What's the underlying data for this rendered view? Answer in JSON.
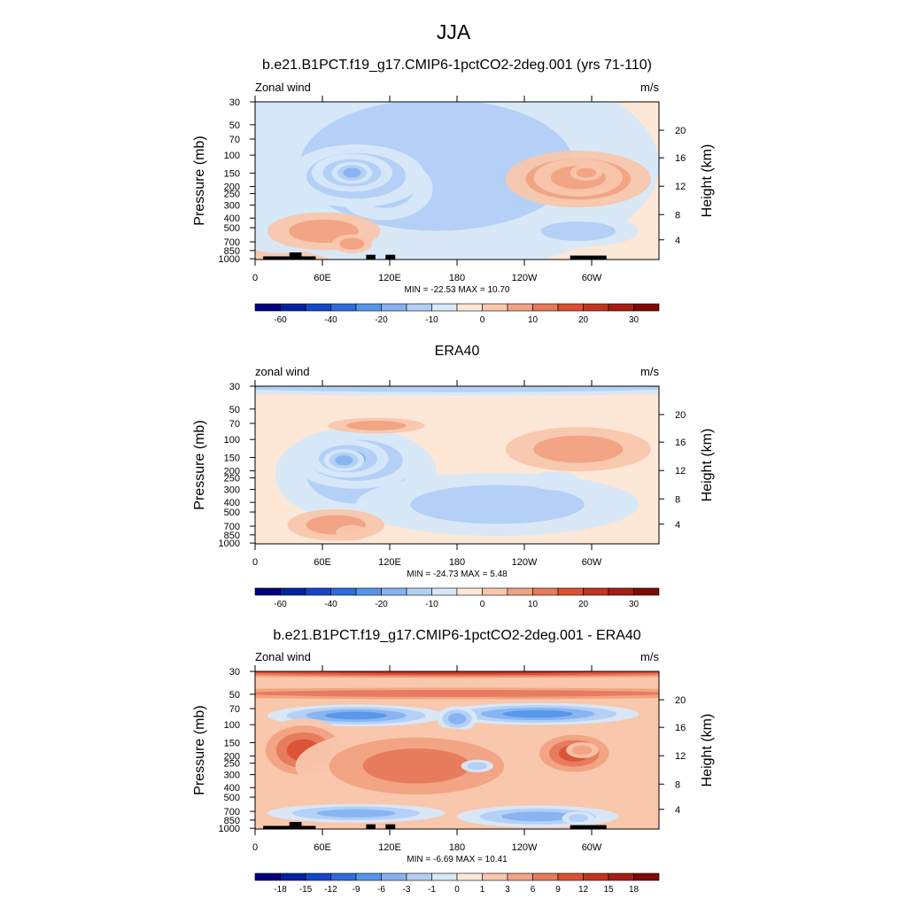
{
  "main_title": "JJA",
  "chart_data": [
    {
      "type": "heatmap",
      "title": "b.e21.B1PCT.f19_g17.CMIP6-1pctCO2-2deg.001 (yrs 71-110)",
      "left_label": "Zonal wind",
      "units": "m/s",
      "ylabel": "Pressure (mb)",
      "y2label": "Height (km)",
      "x_ticks": [
        "0",
        "60E",
        "120E",
        "180",
        "120W",
        "60W"
      ],
      "p_ticks": [
        "30",
        "50",
        "70",
        "100",
        "150",
        "200",
        "250",
        "300",
        "400",
        "500",
        "700",
        "850",
        "1000"
      ],
      "h_ticks": [
        "20",
        "16",
        "12",
        "8",
        "4"
      ],
      "stats": "MIN = -22.53  MAX =  10.70",
      "min": -22.53,
      "max": 10.7,
      "colorbar": {
        "labels": [
          "-60",
          "-40",
          "-20",
          "-10",
          "0",
          "10",
          "20",
          "30"
        ],
        "colors": [
          "#00007f",
          "#0022a0",
          "#1446c8",
          "#2d6cdb",
          "#5596ea",
          "#86b3f0",
          "#b3cff5",
          "#d7e8f9",
          "#fde7d6",
          "#f8c7ac",
          "#f1a283",
          "#e67a5a",
          "#da5233",
          "#c23420",
          "#a51e12",
          "#7f0a05"
        ]
      },
      "field": {
        "bg": 0.5,
        "blobs": [
          [
            0.5,
            0,
            1,
            0.2,
            0.5
          ],
          [
            -1,
            0.07,
            0.26,
            0.3,
            0.7
          ],
          [
            -1,
            0.45,
            0.4,
            0.55,
            0.68
          ],
          [
            -1,
            0.32,
            0.55,
            0.12,
            0.2
          ],
          [
            -1.2,
            0.19,
            0.83,
            0.1,
            0.12
          ],
          [
            -1,
            0.8,
            0.82,
            0.15,
            0.1
          ],
          [
            -1.5,
            0.25,
            0.47,
            0.17,
            0.2
          ],
          [
            -1.7,
            0.24,
            0.45,
            0.1,
            0.12
          ],
          [
            -1.3,
            0.24,
            0.45,
            0.05,
            0.07
          ],
          [
            1.6,
            0.8,
            0.49,
            0.18,
            0.18
          ],
          [
            1.0,
            0.8,
            0.48,
            0.11,
            0.12
          ],
          [
            0.8,
            0.82,
            0.45,
            0.04,
            0.05
          ],
          [
            0.8,
            0.17,
            0.82,
            0.14,
            0.12
          ],
          [
            1.0,
            0.24,
            0.9,
            0.05,
            0.06
          ]
        ],
        "topo": [
          [
            0.02,
            0.12,
            0.02
          ],
          [
            0.085,
            0.115,
            0.045
          ],
          [
            0.11,
            0.15,
            0.02
          ],
          [
            0.275,
            0.298,
            0.03
          ],
          [
            0.323,
            0.347,
            0.03
          ],
          [
            0.78,
            0.87,
            0.025
          ]
        ]
      }
    },
    {
      "type": "heatmap",
      "title": "ERA40",
      "left_label": "zonal wind",
      "units": "m/s",
      "ylabel": "Pressure (mb)",
      "y2label": "Height (km)",
      "x_ticks": [
        "0",
        "60E",
        "120E",
        "180",
        "120W",
        "60W"
      ],
      "p_ticks": [
        "30",
        "50",
        "70",
        "100",
        "150",
        "200",
        "250",
        "300",
        "400",
        "500",
        "700",
        "850",
        "1000"
      ],
      "h_ticks": [
        "20",
        "16",
        "12",
        "8",
        "4"
      ],
      "stats": "MIN = -24.73  MAX =   5.48",
      "min": -24.73,
      "max": 5.48,
      "colorbar": {
        "labels": [
          "-60",
          "-40",
          "-20",
          "-10",
          "0",
          "10",
          "20",
          "30"
        ],
        "colors": [
          "#00007f",
          "#0022a0",
          "#1446c8",
          "#2d6cdb",
          "#5596ea",
          "#86b3f0",
          "#b3cff5",
          "#d7e8f9",
          "#fde7d6",
          "#f8c7ac",
          "#f1a283",
          "#e67a5a",
          "#da5233",
          "#c23420",
          "#a51e12",
          "#7f0a05"
        ]
      },
      "field": {
        "bg": 0.5,
        "blobs": [
          [
            -1,
            0.5,
            0.0,
            1.0,
            0.06
          ],
          [
            -1,
            0.25,
            0.56,
            0.2,
            0.3
          ],
          [
            -1,
            0.6,
            0.75,
            0.35,
            0.2
          ],
          [
            -1.5,
            0.25,
            0.47,
            0.16,
            0.18
          ],
          [
            -1.7,
            0.23,
            0.46,
            0.1,
            0.12
          ],
          [
            -1.5,
            0.22,
            0.47,
            0.05,
            0.07
          ],
          [
            1.0,
            0.8,
            0.4,
            0.18,
            0.14
          ],
          [
            0.8,
            0.3,
            0.25,
            0.12,
            0.05
          ],
          [
            0.8,
            0.2,
            0.88,
            0.12,
            0.1
          ],
          [
            0.6,
            0.24,
            0.93,
            0.04,
            0.05
          ],
          [
            -0.5,
            0.74,
            0.6,
            0.06,
            0.06
          ]
        ],
        "topo": []
      }
    },
    {
      "type": "heatmap",
      "title": "b.e21.B1PCT.f19_g17.CMIP6-1pctCO2-2deg.001 - ERA40",
      "left_label": "Zonal wind",
      "units": "m/s",
      "ylabel": "Pressure (mb)",
      "y2label": "Height (km)",
      "x_ticks": [
        "0",
        "60E",
        "120E",
        "180",
        "120W",
        "60W"
      ],
      "p_ticks": [
        "30",
        "50",
        "70",
        "100",
        "150",
        "200",
        "250",
        "300",
        "400",
        "500",
        "700",
        "850",
        "1000"
      ],
      "h_ticks": [
        "20",
        "16",
        "12",
        "8",
        "4"
      ],
      "stats": "MIN =  -6.69  MAX =  10.41",
      "min": -6.69,
      "max": 10.41,
      "colorbar": {
        "labels": [
          "-18",
          "-15",
          "-12",
          "-9",
          "-6",
          "-3",
          "-1",
          "0",
          "1",
          "3",
          "6",
          "9",
          "12",
          "15",
          "18"
        ],
        "colors": [
          "#00007f",
          "#0022a0",
          "#1446c8",
          "#2d6cdb",
          "#5596ea",
          "#86b3f0",
          "#b3cff5",
          "#d7e8f9",
          "#fde7d6",
          "#f8c7ac",
          "#f1a283",
          "#e67a5a",
          "#da5233",
          "#c23420",
          "#a51e12",
          "#7f0a05"
        ]
      },
      "field": {
        "bg": 0.3,
        "blobs": [
          [
            2.6,
            0.5,
            0.0,
            1.2,
            0.05
          ],
          [
            1.5,
            0.5,
            0.14,
            1.2,
            0.05
          ],
          [
            -2.0,
            0.25,
            0.28,
            0.22,
            0.07
          ],
          [
            -2.0,
            0.7,
            0.27,
            0.25,
            0.07
          ],
          [
            -1.5,
            0.5,
            0.3,
            0.05,
            0.08
          ],
          [
            2.0,
            0.12,
            0.5,
            0.12,
            0.2
          ],
          [
            2.0,
            0.79,
            0.52,
            0.11,
            0.15
          ],
          [
            1.0,
            0.81,
            0.5,
            0.04,
            0.05
          ],
          [
            1.0,
            0.35,
            0.55,
            0.06,
            0.08
          ],
          [
            1.5,
            0.4,
            0.6,
            0.3,
            0.25
          ],
          [
            -1.5,
            0.25,
            0.9,
            0.22,
            0.06
          ],
          [
            -1.5,
            0.7,
            0.92,
            0.2,
            0.07
          ],
          [
            -1.0,
            0.8,
            0.93,
            0.04,
            0.04
          ],
          [
            -1.0,
            0.55,
            0.6,
            0.04,
            0.04
          ]
        ],
        "topo": [
          [
            0.02,
            0.12,
            0.02
          ],
          [
            0.085,
            0.115,
            0.045
          ],
          [
            0.11,
            0.15,
            0.02
          ],
          [
            0.275,
            0.298,
            0.03
          ],
          [
            0.323,
            0.347,
            0.03
          ],
          [
            0.78,
            0.87,
            0.025
          ]
        ]
      }
    }
  ]
}
